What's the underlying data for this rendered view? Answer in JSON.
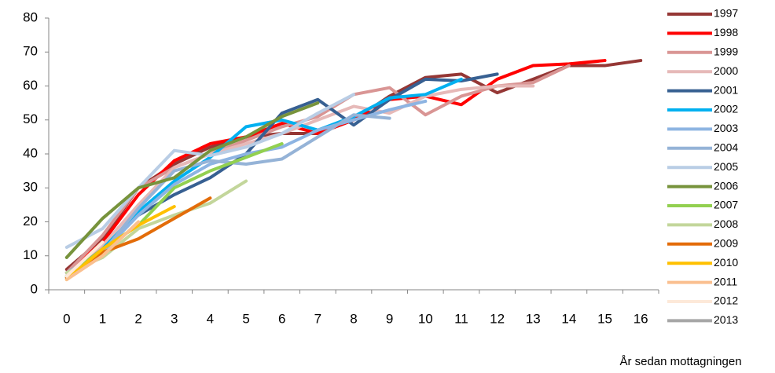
{
  "chart_data": {
    "type": "line",
    "x_label": "År sedan mottagningen",
    "categories": [
      "0",
      "1",
      "2",
      "3",
      "4",
      "5",
      "6",
      "7",
      "8",
      "9",
      "10",
      "11",
      "12",
      "13",
      "14",
      "15",
      "16"
    ],
    "ylim": [
      0,
      80
    ],
    "yticks": [
      0,
      10,
      20,
      30,
      40,
      50,
      60,
      70,
      80
    ],
    "grid": false,
    "legend": "right",
    "series": [
      {
        "name": "1997",
        "color": "#953735",
        "values": [
          6,
          15,
          30,
          37,
          42,
          45,
          46,
          46,
          50,
          57,
          62.5,
          63.5,
          58,
          62,
          66,
          66,
          67.5
        ]
      },
      {
        "name": "1998",
        "color": "#ff0000",
        "values": [
          5,
          14,
          28,
          38,
          43,
          45,
          49,
          46,
          50,
          56,
          57,
          54.5,
          62,
          66,
          66.5,
          67.5,
          null
        ]
      },
      {
        "name": "1999",
        "color": "#d99594",
        "values": [
          5,
          16,
          30,
          36,
          40,
          44,
          48,
          51,
          57.5,
          59.5,
          51.5,
          57,
          60,
          61,
          66,
          null,
          null
        ]
      },
      {
        "name": "2000",
        "color": "#e6b9b8",
        "values": [
          4,
          13,
          25,
          36,
          40,
          43,
          46,
          50,
          54,
          52,
          57,
          59,
          60,
          60,
          null,
          null,
          null
        ]
      },
      {
        "name": "2001",
        "color": "#376092",
        "values": [
          4,
          12,
          22,
          28,
          33,
          40,
          52,
          56,
          48.5,
          56,
          62,
          61.5,
          63.5,
          null,
          null,
          null,
          null
        ]
      },
      {
        "name": "2002",
        "color": "#00b0f0",
        "values": [
          3.5,
          12,
          23,
          32,
          39,
          48,
          50,
          47,
          51,
          56.5,
          57.5,
          62,
          null,
          null,
          null,
          null,
          null
        ]
      },
      {
        "name": "2003",
        "color": "#8db4e2",
        "values": [
          4,
          11,
          22,
          31,
          37,
          40,
          42,
          47,
          50,
          53,
          55.5,
          null,
          null,
          null,
          null,
          null,
          null
        ]
      },
      {
        "name": "2004",
        "color": "#95b3d7",
        "values": [
          5,
          11,
          24,
          35,
          38,
          37,
          38.5,
          45,
          51.5,
          50.5,
          null,
          null,
          null,
          null,
          null,
          null,
          null
        ]
      },
      {
        "name": "2005",
        "color": "#b9cde5",
        "values": [
          12.5,
          18,
          30,
          41,
          39.5,
          42,
          46,
          52,
          57.5,
          null,
          null,
          null,
          null,
          null,
          null,
          null,
          null
        ]
      },
      {
        "name": "2006",
        "color": "#77933c",
        "values": [
          9.5,
          21,
          30,
          33,
          41,
          45,
          51,
          55,
          null,
          null,
          null,
          null,
          null,
          null,
          null,
          null,
          null
        ]
      },
      {
        "name": "2007",
        "color": "#92d050",
        "values": [
          4,
          12,
          19,
          30,
          35,
          39,
          43,
          null,
          null,
          null,
          null,
          null,
          null,
          null,
          null,
          null,
          null
        ]
      },
      {
        "name": "2008",
        "color": "#c3d69b",
        "values": [
          5,
          9.5,
          18,
          22,
          25.5,
          32,
          null,
          null,
          null,
          null,
          null,
          null,
          null,
          null,
          null,
          null,
          null
        ]
      },
      {
        "name": "2009",
        "color": "#e36c09",
        "values": [
          3.5,
          11,
          15,
          21,
          27,
          null,
          null,
          null,
          null,
          null,
          null,
          null,
          null,
          null,
          null,
          null,
          null
        ]
      },
      {
        "name": "2010",
        "color": "#ffc000",
        "values": [
          3,
          12,
          19,
          24.5,
          null,
          null,
          null,
          null,
          null,
          null,
          null,
          null,
          null,
          null,
          null,
          null,
          null
        ]
      },
      {
        "name": "2011",
        "color": "#fac090",
        "values": [
          3,
          10,
          20,
          null,
          null,
          null,
          null,
          null,
          null,
          null,
          null,
          null,
          null,
          null,
          null,
          null,
          null
        ]
      },
      {
        "name": "2012",
        "color": "#fde9d9",
        "values": [
          4,
          14,
          null,
          null,
          null,
          null,
          null,
          null,
          null,
          null,
          null,
          null,
          null,
          null,
          null,
          null,
          null
        ]
      },
      {
        "name": "2013",
        "color": "#a6a6a6",
        "values": [
          6,
          null,
          null,
          null,
          null,
          null,
          null,
          null,
          null,
          null,
          null,
          null,
          null,
          null,
          null,
          null,
          null
        ]
      }
    ]
  }
}
